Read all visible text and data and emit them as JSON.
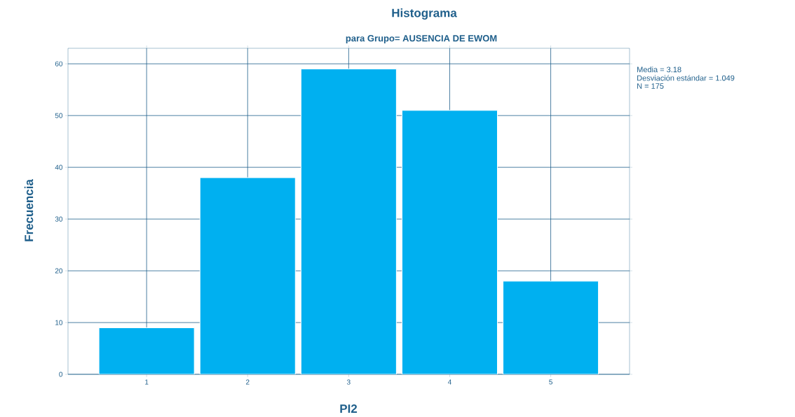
{
  "chart_data": {
    "type": "bar",
    "title": "Histograma",
    "subtitle": "para Grupo= AUSENCIA DE EWOM",
    "xlabel": "PI2",
    "ylabel": "Frecuencia",
    "categories": [
      "1",
      "2",
      "3",
      "4",
      "5"
    ],
    "values": [
      9,
      38,
      59,
      51,
      18
    ],
    "color": "#00b0f0",
    "ylim": [
      0,
      63
    ],
    "yticks": [
      0,
      10,
      20,
      30,
      40,
      50,
      60
    ],
    "grid": true,
    "annotations": [
      "Media = 3.18",
      "Desviación estándar = 1.049",
      "N = 175"
    ]
  }
}
